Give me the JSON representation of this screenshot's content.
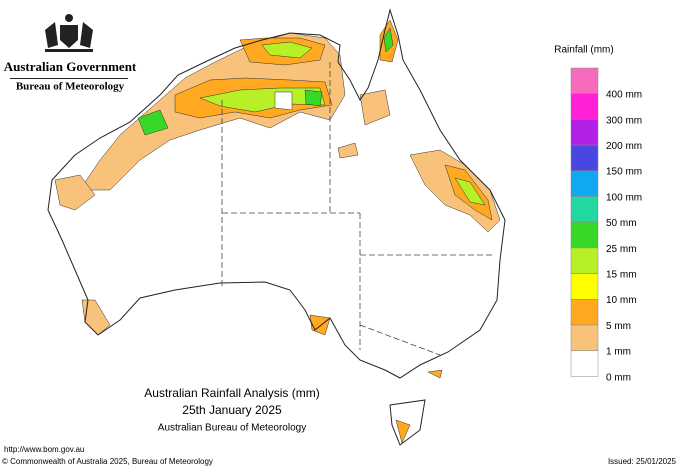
{
  "header": {
    "government": "Australian Government",
    "agency": "Bureau of Meteorology"
  },
  "title": {
    "line1": "Australian Rainfall Analysis (mm)",
    "line2": "25th January 2025",
    "line3": "Australian Bureau of Meteorology"
  },
  "legend": {
    "title": "Rainfall (mm)",
    "items": [
      {
        "label": "400 mm",
        "color": "#f76bbd"
      },
      {
        "label": "300 mm",
        "color": "#ff20d8"
      },
      {
        "label": "200 mm",
        "color": "#b420e8"
      },
      {
        "label": "150 mm",
        "color": "#4848e0"
      },
      {
        "label": "100 mm",
        "color": "#10a8f0"
      },
      {
        "label": "50 mm",
        "color": "#20d8a0"
      },
      {
        "label": "25 mm",
        "color": "#38d828"
      },
      {
        "label": "15 mm",
        "color": "#b8f028"
      },
      {
        "label": "10 mm",
        "color": "#ffff00"
      },
      {
        "label": "5 mm",
        "color": "#ffa820"
      },
      {
        "label": "1 mm",
        "color": "#f8c27a"
      },
      {
        "label": "0 mm",
        "color": "#ffffff"
      }
    ]
  },
  "footer": {
    "url": "http://www.bom.gov.au",
    "copyright": "© Commonwealth of Australia 2025, Bureau of Meteorology",
    "issued": "Issued: 25/01/2025"
  }
}
